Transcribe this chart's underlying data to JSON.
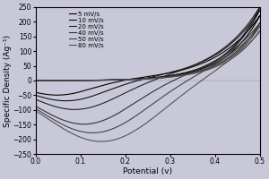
{
  "title": "",
  "xlabel": "Potential (v)",
  "ylabel": "Specific Density (Ag⁻¹)",
  "xlim": [
    0.0,
    0.5
  ],
  "ylim": [
    -250,
    250
  ],
  "yticks": [
    -250,
    -200,
    -150,
    -100,
    -50,
    0,
    50,
    100,
    150,
    200,
    250
  ],
  "xticks": [
    0.0,
    0.1,
    0.2,
    0.3,
    0.4,
    0.5
  ],
  "scan_rates": [
    {
      "label": "5 mV/s",
      "anodic_peak": 220,
      "cathodic_peak": -50,
      "cat_peak_v": 0.05,
      "color": "#111111",
      "lw": 0.8
    },
    {
      "label": "10 mV/s",
      "anodic_peak": 240,
      "cathodic_peak": -70,
      "cat_peak_v": 0.07,
      "color": "#111111",
      "lw": 0.8
    },
    {
      "label": "20 mV/s",
      "anodic_peak": 250,
      "cathodic_peak": -100,
      "cat_peak_v": 0.09,
      "color": "#111111",
      "lw": 0.8
    },
    {
      "label": "40 mV/s",
      "anodic_peak": 195,
      "cathodic_peak": -150,
      "cat_peak_v": 0.11,
      "color": "#111111",
      "lw": 0.8
    },
    {
      "label": "50 mV/s",
      "anodic_peak": 185,
      "cathodic_peak": -180,
      "cat_peak_v": 0.13,
      "color": "#111111",
      "lw": 0.8
    },
    {
      "label": "80 mV/s",
      "anodic_peak": 170,
      "cathodic_peak": -210,
      "cat_peak_v": 0.15,
      "color": "#111111",
      "lw": 0.8
    }
  ],
  "background_color": "#c8c8d8",
  "legend_fontsize": 5.0,
  "axis_fontsize": 6.5,
  "tick_fontsize": 5.5
}
